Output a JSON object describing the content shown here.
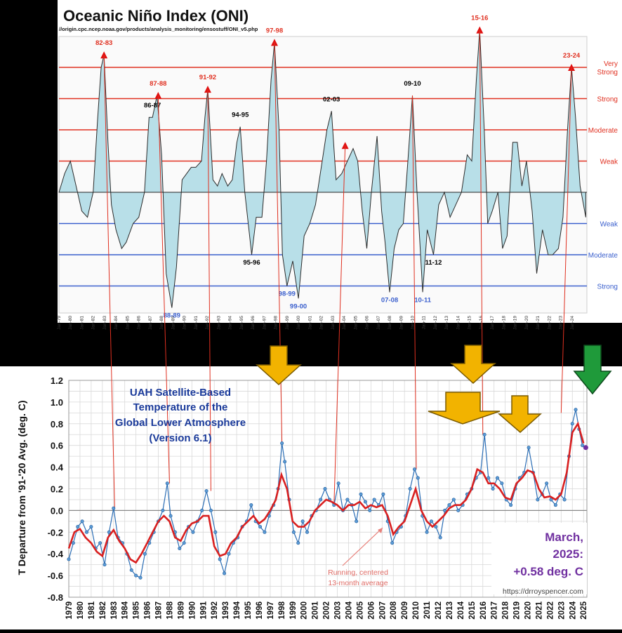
{
  "oni": {
    "title": "Oceanic Niño Index (ONI)",
    "url": "//origin.cpc.ncep.noaa.gov/products/analysis_monitoring/ensostuff/ONI_v5.php",
    "levels_right": [
      {
        "label": "Very Strong",
        "lines": [
          "Very",
          "Strong"
        ],
        "value": 2.0,
        "color": "#e03020"
      },
      {
        "label": "Strong",
        "lines": [
          "Strong"
        ],
        "value": 1.5,
        "color": "#e03020"
      },
      {
        "label": "Moderate",
        "lines": [
          "Moderate"
        ],
        "value": 1.0,
        "color": "#e03020"
      },
      {
        "label": "Weak",
        "lines": [
          "Weak"
        ],
        "value": 0.5,
        "color": "#e03020"
      },
      {
        "label": "Weak",
        "lines": [
          "Weak"
        ],
        "value": -0.5,
        "color": "#3a5fcd"
      },
      {
        "label": "Moderate",
        "lines": [
          "Moderate"
        ],
        "value": -1.0,
        "color": "#3a5fcd"
      },
      {
        "label": "Strong",
        "lines": [
          "Strong"
        ],
        "value": -1.5,
        "color": "#3a5fcd"
      }
    ],
    "x_ticks": [
      "Jan-79",
      "Jan-80",
      "Jan-81",
      "Jan-82",
      "Jan-83",
      "Jan-84",
      "Jan-85",
      "Jan-86",
      "Jan-87",
      "Jan-88",
      "Jan-89",
      "Jan-90",
      "Jan-91",
      "Jan-92",
      "Jan-93",
      "Jan-94",
      "Jan-95",
      "Jan-96",
      "Jan-97",
      "Jan-98",
      "Jan-99",
      "Jan-00",
      "Jan-01",
      "Jan-02",
      "Jan-03",
      "Jan-04",
      "Jan-05",
      "Jan-06",
      "Jan-07",
      "Jan-08",
      "Jan-09",
      "Jan-10",
      "Jan-11",
      "Jan-12",
      "Jan-13",
      "Jan-14",
      "Jan-15",
      "Jan-16",
      "Jan-17",
      "Jan-18",
      "Jan-19",
      "Jan-20",
      "Jan-21",
      "Jan-22",
      "Jan-23",
      "Jan-24"
    ],
    "events": [
      {
        "label": "82-83",
        "color": "#e03020",
        "year": 1982.95,
        "value": 2.2
      },
      {
        "label": "86-87",
        "color": "#000000",
        "year": 1987.2,
        "value": 1.2
      },
      {
        "label": "87-88",
        "color": "#e03020",
        "year": 1987.7,
        "value": 1.55
      },
      {
        "label": "91-92",
        "color": "#e03020",
        "year": 1992.05,
        "value": 1.65
      },
      {
        "label": "94-95",
        "color": "#000000",
        "year": 1994.9,
        "value": 1.05
      },
      {
        "label": "97-98",
        "color": "#e03020",
        "year": 1997.9,
        "value": 2.4
      },
      {
        "label": "02-03",
        "color": "#000000",
        "year": 2002.9,
        "value": 1.3
      },
      {
        "label": "09-10",
        "color": "#000000",
        "year": 2010.0,
        "value": 1.55
      },
      {
        "label": "15-16",
        "color": "#e03020",
        "year": 2015.9,
        "value": 2.6
      },
      {
        "label": "23-24",
        "color": "#e03020",
        "year": 2023.95,
        "value": 2.0
      },
      {
        "label": "95-96",
        "color": "#000000",
        "year": 1995.9,
        "value": -1.0
      },
      {
        "label": "11-12",
        "color": "#000000",
        "year": 2011.85,
        "value": -1.0
      },
      {
        "label": "88-89",
        "color": "#3a5fcd",
        "year": 1988.9,
        "value": -1.85
      },
      {
        "label": "98-99",
        "color": "#3a5fcd",
        "year": 1999.0,
        "value": -1.5
      },
      {
        "label": "99-00",
        "color": "#3a5fcd",
        "year": 2000.0,
        "value": -1.7
      },
      {
        "label": "07-08",
        "color": "#3a5fcd",
        "year": 2008.0,
        "value": -1.6
      },
      {
        "label": "10-11",
        "color": "#3a5fcd",
        "year": 2010.9,
        "value": -1.6
      }
    ]
  },
  "uah": {
    "title_lines": [
      "UAH Satellite-Based",
      "Temperature of the",
      "Global Lower Atmosphere",
      "(Version 6.1)"
    ],
    "ylabel": "T Departure from '91-'20 Avg. (deg. C)",
    "yticks": [
      "1.2",
      "1.0",
      "0.8",
      "0.6",
      "0.4",
      "0.2",
      "0.0",
      "-0.2",
      "-0.4",
      "-0.6",
      "-0.8"
    ],
    "xticks": [
      "1979",
      "1980",
      "1981",
      "1982",
      "1983",
      "1984",
      "1985",
      "1986",
      "1987",
      "1988",
      "1989",
      "1990",
      "1991",
      "1992",
      "1993",
      "1994",
      "1995",
      "1996",
      "1997",
      "1998",
      "1999",
      "2000",
      "2001",
      "2002",
      "2003",
      "2004",
      "2005",
      "2006",
      "2007",
      "2008",
      "2009",
      "2010",
      "2011",
      "2012",
      "2013",
      "2014",
      "2015",
      "2016",
      "2017",
      "2018",
      "2019",
      "2020",
      "2021",
      "2022",
      "2023",
      "2024",
      "2025"
    ],
    "running_label_lines": [
      "Running, centered",
      "13-month average"
    ],
    "latest_lines": [
      "March,",
      "2025:",
      "+0.58 deg. C"
    ],
    "website": "https://drroyspencer.com",
    "colors": {
      "monthly": "#2a6db5",
      "running": "#d92020",
      "title": "#1a3a9a",
      "latest": "#7030a0",
      "arrow_yellow": "#f2b300",
      "arrow_green": "#1f9a3a"
    }
  },
  "chart_data": [
    {
      "type": "area",
      "title": "Oceanic Niño Index (ONI)",
      "xlabel": "",
      "ylabel": "",
      "x_range": [
        1979,
        2025.3
      ],
      "ylim": [
        -2.0,
        2.8
      ],
      "grid": false,
      "x": [
        1979.0,
        1979.5,
        1980.0,
        1980.5,
        1981.0,
        1981.5,
        1982.0,
        1982.4,
        1982.7,
        1982.95,
        1983.3,
        1983.6,
        1984.0,
        1984.5,
        1984.9,
        1985.5,
        1986.0,
        1986.5,
        1986.9,
        1987.2,
        1987.6,
        1988.0,
        1988.4,
        1988.9,
        1989.3,
        1989.8,
        1990.2,
        1990.6,
        1991.0,
        1991.5,
        1991.8,
        1992.05,
        1992.5,
        1992.9,
        1993.3,
        1993.8,
        1994.2,
        1994.6,
        1994.9,
        1995.3,
        1995.9,
        1996.3,
        1996.8,
        1997.2,
        1997.6,
        1997.9,
        1998.3,
        1998.6,
        1999.0,
        1999.5,
        2000.0,
        2000.5,
        2001.0,
        2001.5,
        2002.0,
        2002.5,
        2002.9,
        2003.3,
        2003.8,
        2004.3,
        2004.8,
        2005.2,
        2005.6,
        2006.0,
        2006.4,
        2006.9,
        2007.3,
        2007.6,
        2008.0,
        2008.4,
        2008.8,
        2009.2,
        2009.6,
        2010.0,
        2010.4,
        2010.9,
        2011.3,
        2011.85,
        2012.3,
        2012.8,
        2013.3,
        2013.8,
        2014.3,
        2014.8,
        2015.2,
        2015.6,
        2015.9,
        2016.3,
        2016.6,
        2017.0,
        2017.5,
        2017.9,
        2018.3,
        2018.8,
        2019.2,
        2019.6,
        2020.0,
        2020.5,
        2020.9,
        2021.4,
        2021.9,
        2022.3,
        2022.8,
        2023.2,
        2023.6,
        2023.95,
        2024.3,
        2024.7,
        2025.2
      ],
      "series": [
        {
          "values": [
            0.0,
            0.3,
            0.5,
            0.1,
            -0.3,
            -0.4,
            0.0,
            1.2,
            2.0,
            2.2,
            0.8,
            -0.2,
            -0.6,
            -0.9,
            -0.8,
            -0.5,
            -0.4,
            0.0,
            1.2,
            1.2,
            1.55,
            0.6,
            -1.3,
            -1.85,
            -1.2,
            0.2,
            0.3,
            0.4,
            0.4,
            0.5,
            1.2,
            1.65,
            0.2,
            0.1,
            0.3,
            0.1,
            0.2,
            0.8,
            1.05,
            0.0,
            -1.0,
            -0.4,
            -0.4,
            0.5,
            1.8,
            2.4,
            1.0,
            -1.0,
            -1.5,
            -1.1,
            -1.7,
            -0.7,
            -0.5,
            -0.2,
            0.4,
            1.0,
            1.3,
            0.2,
            0.3,
            0.5,
            0.7,
            0.5,
            -0.3,
            -0.9,
            0.0,
            0.9,
            -0.3,
            -0.8,
            -1.6,
            -0.9,
            -0.6,
            -0.5,
            0.5,
            1.55,
            0.0,
            -1.6,
            -0.6,
            -1.0,
            -0.2,
            0.0,
            -0.4,
            -0.2,
            0.0,
            0.6,
            0.5,
            1.8,
            2.6,
            1.0,
            -0.5,
            -0.3,
            0.0,
            -0.9,
            -0.7,
            0.8,
            0.8,
            0.1,
            0.5,
            -0.3,
            -1.3,
            -0.6,
            -1.0,
            -1.0,
            -0.9,
            -0.4,
            1.0,
            2.0,
            1.2,
            0.1,
            -0.4
          ]
        }
      ]
    },
    {
      "type": "line",
      "title": "UAH Satellite-Based Temperature of the Global Lower Atmosphere (Version 6.1)",
      "xlabel": "",
      "ylabel": "T Departure from '91-'20 Avg. (deg. C)",
      "x_range": [
        1979,
        2025.3
      ],
      "ylim": [
        -0.8,
        1.2
      ],
      "grid": true,
      "legend": "none",
      "series": [
        {
          "name": "Running, centered 13-month average",
          "x": [
            1979.0,
            1979.5,
            1980.0,
            1980.5,
            1981.0,
            1981.5,
            1982.0,
            1982.5,
            1983.0,
            1983.5,
            1984.0,
            1984.5,
            1985.0,
            1985.5,
            1986.0,
            1986.5,
            1987.0,
            1987.5,
            1988.0,
            1988.5,
            1989.0,
            1989.5,
            1990.0,
            1990.5,
            1991.0,
            1991.5,
            1992.0,
            1992.5,
            1993.0,
            1993.5,
            1994.0,
            1994.5,
            1995.0,
            1995.5,
            1996.0,
            1996.5,
            1997.0,
            1997.5,
            1998.0,
            1998.5,
            1999.0,
            1999.5,
            2000.0,
            2000.5,
            2001.0,
            2001.5,
            2002.0,
            2002.5,
            2003.0,
            2003.5,
            2004.0,
            2004.5,
            2005.0,
            2005.5,
            2006.0,
            2006.5,
            2007.0,
            2007.5,
            2008.0,
            2008.5,
            2009.0,
            2009.5,
            2010.0,
            2010.5,
            2011.0,
            2011.5,
            2012.0,
            2012.5,
            2013.0,
            2013.5,
            2014.0,
            2014.5,
            2015.0,
            2015.5,
            2016.0,
            2016.5,
            2017.0,
            2017.5,
            2018.0,
            2018.5,
            2019.0,
            2019.5,
            2020.0,
            2020.5,
            2021.0,
            2021.5,
            2022.0,
            2022.5,
            2023.0,
            2023.5,
            2024.0,
            2024.5,
            2025.0
          ],
          "values": [
            -0.35,
            -0.2,
            -0.17,
            -0.25,
            -0.3,
            -0.38,
            -0.42,
            -0.25,
            -0.18,
            -0.28,
            -0.35,
            -0.45,
            -0.48,
            -0.4,
            -0.3,
            -0.2,
            -0.1,
            -0.05,
            -0.1,
            -0.25,
            -0.28,
            -0.18,
            -0.12,
            -0.1,
            -0.05,
            -0.05,
            -0.33,
            -0.42,
            -0.4,
            -0.3,
            -0.25,
            -0.15,
            -0.1,
            -0.05,
            -0.12,
            -0.08,
            0.0,
            0.1,
            0.33,
            0.2,
            -0.1,
            -0.15,
            -0.15,
            -0.1,
            0.0,
            0.05,
            0.1,
            0.08,
            0.05,
            0.0,
            0.05,
            0.05,
            0.08,
            0.02,
            0.05,
            0.03,
            0.05,
            -0.05,
            -0.22,
            -0.15,
            -0.1,
            0.05,
            0.2,
            0.0,
            -0.1,
            -0.15,
            -0.1,
            -0.05,
            0.02,
            0.05,
            0.05,
            0.1,
            0.2,
            0.38,
            0.35,
            0.25,
            0.25,
            0.2,
            0.12,
            0.1,
            0.25,
            0.3,
            0.37,
            0.35,
            0.2,
            0.12,
            0.13,
            0.1,
            0.15,
            0.35,
            0.72,
            0.8,
            0.62
          ]
        },
        {
          "name": "Monthly anomaly",
          "x": [
            1979.0,
            1979.4,
            1979.8,
            1980.2,
            1980.6,
            1981.0,
            1981.4,
            1981.8,
            1982.2,
            1982.6,
            1983.0,
            1983.4,
            1983.8,
            1984.2,
            1984.6,
            1985.0,
            1985.4,
            1985.8,
            1986.2,
            1986.6,
            1987.0,
            1987.4,
            1987.8,
            1988.1,
            1988.5,
            1988.9,
            1989.3,
            1989.7,
            1990.1,
            1990.5,
            1990.9,
            1991.3,
            1991.7,
            1992.1,
            1992.5,
            1992.9,
            1993.3,
            1993.7,
            1994.1,
            1994.5,
            1994.9,
            1995.3,
            1995.7,
            1996.1,
            1996.5,
            1996.9,
            1997.3,
            1997.7,
            1998.05,
            1998.3,
            1998.7,
            1999.1,
            1999.5,
            1999.9,
            2000.3,
            2000.7,
            2001.1,
            2001.5,
            2001.9,
            2002.3,
            2002.7,
            2003.1,
            2003.5,
            2003.9,
            2004.3,
            2004.7,
            2005.1,
            2005.5,
            2005.9,
            2006.3,
            2006.7,
            2007.1,
            2007.5,
            2007.9,
            2008.3,
            2008.7,
            2009.1,
            2009.5,
            2009.9,
            2010.2,
            2010.6,
            2011.0,
            2011.4,
            2011.8,
            2012.2,
            2012.6,
            2013.0,
            2013.4,
            2013.8,
            2014.2,
            2014.6,
            2015.0,
            2015.4,
            2015.8,
            2016.15,
            2016.5,
            2016.9,
            2017.3,
            2017.7,
            2018.1,
            2018.5,
            2018.9,
            2019.3,
            2019.7,
            2020.1,
            2020.5,
            2020.9,
            2021.3,
            2021.7,
            2022.1,
            2022.5,
            2022.9,
            2023.3,
            2023.7,
            2024.0,
            2024.3,
            2024.6,
            2024.9,
            2025.2
          ],
          "values": [
            -0.45,
            -0.3,
            -0.15,
            -0.1,
            -0.2,
            -0.15,
            -0.35,
            -0.3,
            -0.5,
            -0.2,
            0.02,
            -0.25,
            -0.3,
            -0.4,
            -0.55,
            -0.6,
            -0.62,
            -0.4,
            -0.3,
            -0.2,
            -0.1,
            0.0,
            0.25,
            -0.05,
            -0.2,
            -0.35,
            -0.3,
            -0.15,
            -0.2,
            -0.1,
            0.0,
            0.18,
            0.0,
            -0.2,
            -0.45,
            -0.58,
            -0.4,
            -0.3,
            -0.25,
            -0.15,
            -0.1,
            0.05,
            -0.1,
            -0.15,
            -0.2,
            -0.05,
            0.05,
            0.2,
            0.62,
            0.45,
            0.1,
            -0.2,
            -0.3,
            -0.1,
            -0.2,
            -0.05,
            0.0,
            0.1,
            0.2,
            0.1,
            0.05,
            0.25,
            0.0,
            0.1,
            0.05,
            -0.1,
            0.15,
            0.08,
            0.0,
            0.1,
            0.05,
            0.15,
            -0.1,
            -0.3,
            -0.2,
            -0.15,
            -0.05,
            0.2,
            0.38,
            0.3,
            -0.05,
            -0.2,
            -0.1,
            -0.15,
            -0.25,
            0.0,
            0.05,
            0.1,
            0.0,
            0.05,
            0.15,
            0.2,
            0.3,
            0.35,
            0.7,
            0.3,
            0.2,
            0.3,
            0.25,
            0.1,
            0.05,
            0.2,
            0.3,
            0.35,
            0.58,
            0.35,
            0.1,
            0.15,
            0.25,
            0.1,
            0.05,
            0.15,
            0.1,
            0.5,
            0.8,
            0.93,
            0.75,
            0.6,
            0.58
          ]
        }
      ]
    }
  ]
}
